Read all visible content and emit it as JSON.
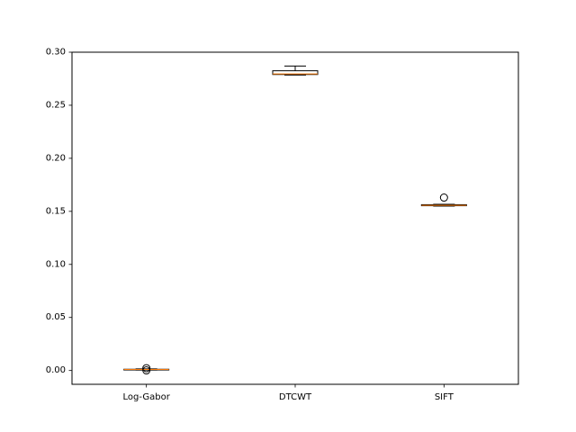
{
  "chart_data": {
    "type": "boxplot",
    "title": "",
    "xlabel": "",
    "ylabel": "",
    "ylim": [
      -0.013,
      0.3
    ],
    "yticks": [
      0.0,
      0.05,
      0.1,
      0.15,
      0.2,
      0.25,
      0.3
    ],
    "ytick_labels": [
      "0.00",
      "0.05",
      "0.10",
      "0.15",
      "0.20",
      "0.25",
      "0.30"
    ],
    "categories": [
      "Log-Gabor",
      "DTCWT",
      "SIFT"
    ],
    "boxes": [
      {
        "name": "Log-Gabor",
        "whisker_low": 0.0005,
        "q1": 0.0008,
        "median": 0.001,
        "q3": 0.0012,
        "whisker_high": 0.0015,
        "outliers": [
          0.0022,
          0.0001
        ]
      },
      {
        "name": "DTCWT",
        "whisker_low": 0.2785,
        "q1": 0.279,
        "median": 0.2795,
        "q3": 0.2825,
        "whisker_high": 0.287,
        "outliers": []
      },
      {
        "name": "SIFT",
        "whisker_low": 0.155,
        "q1": 0.1553,
        "median": 0.1557,
        "q3": 0.1563,
        "whisker_high": 0.1566,
        "outliers": [
          0.163
        ]
      }
    ],
    "grid": false,
    "colors": {
      "median": "#ff7f0e",
      "box": "#000000",
      "axes": "#000000"
    }
  }
}
